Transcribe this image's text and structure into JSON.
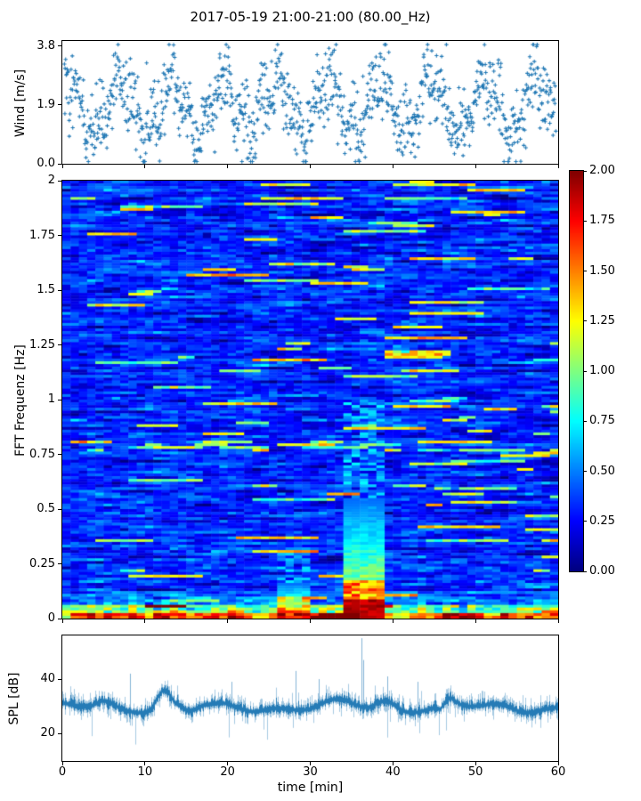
{
  "figure": {
    "title": "2017-05-19 21:00-21:00 (80.00_Hz)",
    "background": "#ffffff",
    "accent_color": "#1f77b4"
  },
  "chart_data": [
    {
      "id": "wind",
      "type": "scatter",
      "marker": "+",
      "color": "#1f77b4",
      "ylabel": "Wind [m/s]",
      "xlim": [
        0,
        60
      ],
      "ylim": [
        0,
        3.97
      ],
      "yticks": {
        "labels": [
          "0.0",
          "1.9",
          "3.8"
        ],
        "values": [
          0.0,
          1.9,
          3.8
        ]
      },
      "xticks": {
        "labels": [],
        "values": [
          0,
          10,
          20,
          30,
          40,
          50,
          60
        ]
      },
      "description": "Wind speed scatter, quasi-periodic gusts between ~0.2 and ~3.7 m/s over 60 min",
      "gen": {
        "seed": 42,
        "n": 1150,
        "base": 1.85,
        "osc1_amp": 0.82,
        "osc1_period": 6.3,
        "osc1_phase": 0.9,
        "osc2_amp": 0.42,
        "osc2_period": 2.2,
        "osc2_phase": 2.0,
        "noise": 0.6,
        "vmin": 0.07,
        "vmax": 3.85
      }
    },
    {
      "id": "spectrogram",
      "type": "heatmap",
      "colormap": "jet",
      "ylabel": "FFT Frequenz [Hz]",
      "xlim": [
        0,
        60
      ],
      "ylim": [
        0,
        2
      ],
      "clim": [
        0,
        2
      ],
      "yticks": {
        "labels": [
          "0",
          "0.25",
          "0.5",
          "0.75",
          "1",
          "1.25",
          "1.5",
          "1.75",
          "2"
        ],
        "values": [
          0,
          0.25,
          0.5,
          0.75,
          1,
          1.25,
          1.5,
          1.75,
          2
        ]
      },
      "xticks": {
        "labels": [],
        "values": [
          0,
          10,
          20,
          30,
          40,
          50,
          60
        ]
      },
      "description": "FFT spectrogram 0-2 Hz, mostly deep blue with cyan streaks, energetic red band below 0.1 Hz, strong dark-red event at 34-38.5 min",
      "gen": {
        "seed": 7,
        "cols": 60,
        "rows": 160,
        "base_mean": 0.32,
        "base_noise": 0.22,
        "ar": 0.55,
        "streak_p": 0.012,
        "streak_val_min": 0.85,
        "streak_val_max": 1.4,
        "band_f": 0.79,
        "band_extra_p": 0.1,
        "band2_f": 1.5,
        "band2_extra_p": 0.03,
        "low_f": 0.12,
        "verylow_f": 0.06,
        "bottom_f": 0.025,
        "events": [
          {
            "t0": 33.8,
            "t1": 38.6,
            "f1": 0.09,
            "val": 2.0,
            "mid_f": 0.17,
            "mid_val": 1.35,
            "top_f": 0.55,
            "glow_f": 1.0
          },
          {
            "t0": 26.3,
            "t1": 29.6,
            "f1": 0.035,
            "val": 1.7,
            "mid_f": 0.1,
            "mid_val": 1.1,
            "top_f": 0.16,
            "glow_f": 0.3
          }
        ]
      }
    },
    {
      "id": "spl",
      "type": "line",
      "color": "#1f77b4",
      "ylabel": "SPL [dB]",
      "xlabel": "time [min]",
      "xlim": [
        0,
        60
      ],
      "ylim": [
        10,
        56
      ],
      "yticks": {
        "labels": [
          "20",
          "40"
        ],
        "values": [
          20,
          40
        ]
      },
      "xticks": {
        "labels": [
          "0",
          "10",
          "20",
          "30",
          "40",
          "50",
          "60"
        ],
        "values": [
          0,
          10,
          20,
          30,
          40,
          50,
          60
        ]
      },
      "description": "Noisy SPL trace around 29-31 dB, broad bump to ~45 dB near 12 min, sharp spike to ~55 dB at 36.2 min",
      "gen": {
        "seed": 99,
        "baseline": 29.6,
        "spread": 2.6,
        "wander": [
          {
            "period": 16.0,
            "amp": 1.2,
            "phase": 1.0
          },
          {
            "period": 6.7,
            "amp": 0.8,
            "phase": 2.3
          }
        ],
        "events": [
          {
            "type": "bump",
            "t": 12.3,
            "amp": 6.0,
            "w": 1.1
          },
          {
            "type": "bump",
            "t": 5.0,
            "amp": 1.8,
            "w": 1.2
          },
          {
            "type": "bump",
            "t": 39.0,
            "amp": 2.4,
            "w": 1.4
          },
          {
            "type": "bump",
            "t": 46.8,
            "amp": 2.4,
            "w": 1.0
          },
          {
            "type": "bump",
            "t": 45.8,
            "amp": -2.2,
            "w": 0.6
          },
          {
            "type": "bump",
            "t": 34.0,
            "amp": 1.4,
            "w": 2.0
          },
          {
            "type": "bump",
            "t": 15.5,
            "amp": -1.5,
            "w": 1.0
          },
          {
            "type": "spike",
            "t": 8.2,
            "v": 42
          },
          {
            "type": "spike",
            "t": 28.2,
            "v": 43
          },
          {
            "type": "spike",
            "t": 31.0,
            "v": 40
          },
          {
            "type": "spike",
            "t": 36.2,
            "v": 55
          },
          {
            "type": "spike",
            "t": 36.4,
            "v": 47
          },
          {
            "type": "spike",
            "t": 39.3,
            "v": 41
          },
          {
            "type": "spike",
            "t": 20.5,
            "v": 39
          },
          {
            "type": "spike",
            "t": 43.0,
            "v": 39
          }
        ]
      }
    }
  ],
  "colorbar": {
    "colormap": "jet",
    "clim": [
      0,
      2
    ],
    "ticks": {
      "labels": [
        "0.00",
        "0.25",
        "0.50",
        "0.75",
        "1.00",
        "1.25",
        "1.50",
        "1.75",
        "2.00"
      ],
      "values": [
        0,
        0.25,
        0.5,
        0.75,
        1,
        1.25,
        1.5,
        1.75,
        2
      ]
    }
  }
}
